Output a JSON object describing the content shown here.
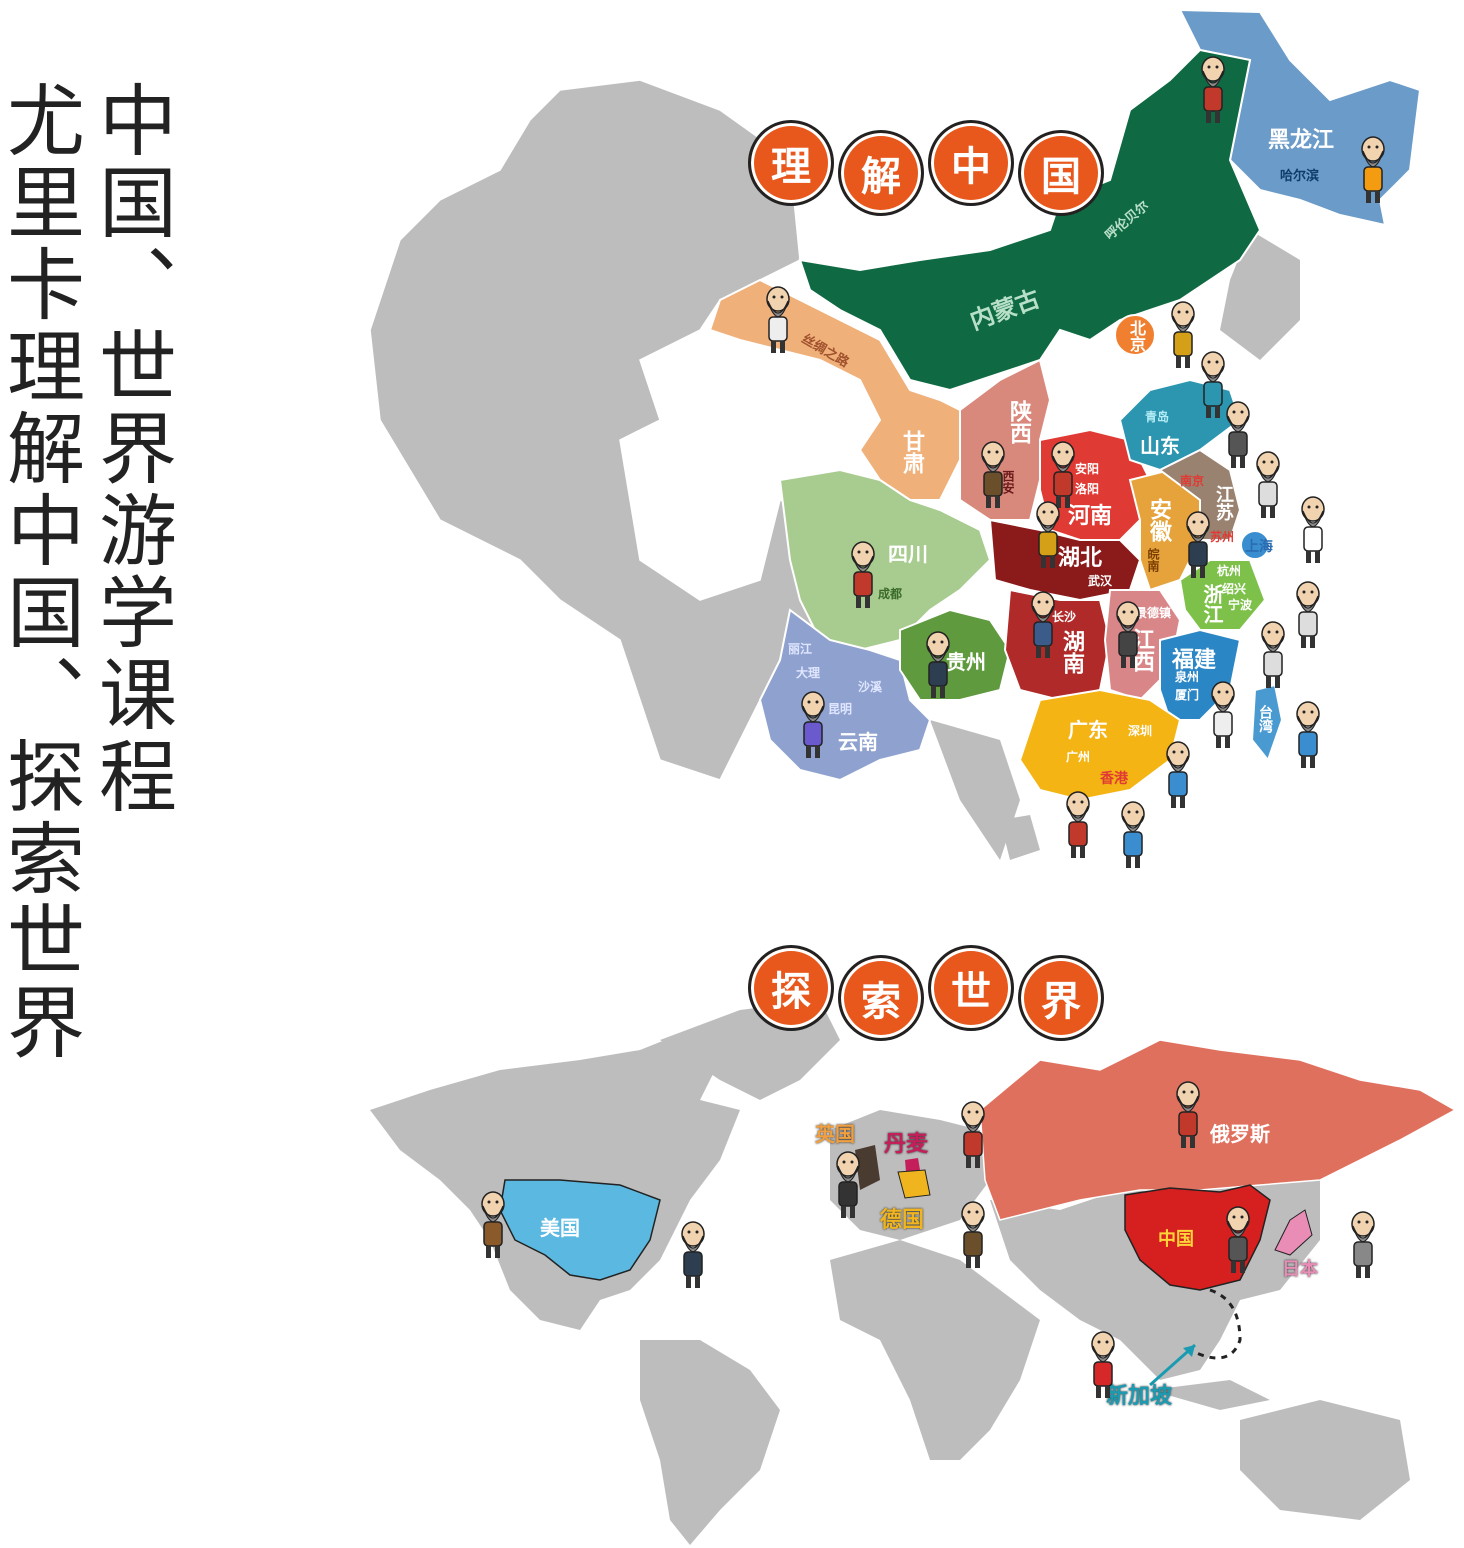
{
  "title": {
    "line1": "中国、世界游学课程",
    "line2": "尤里卡理解中国、探索世界"
  },
  "china_section": {
    "badges": [
      "理",
      "解",
      "中",
      "国"
    ],
    "badge_color": "#e8581c",
    "regions": [
      {
        "name": "黑龙江",
        "color": "#6b9bc8"
      },
      {
        "name": "内蒙古",
        "color": "#0f6a43"
      },
      {
        "name": "甘肃",
        "color": "#f0b07a"
      },
      {
        "name": "陕西",
        "color": "#d9897c"
      },
      {
        "name": "四川",
        "color": "#a8cb8f"
      },
      {
        "name": "云南",
        "color": "#8fa2cf"
      },
      {
        "name": "贵州",
        "color": "#5f9a3e"
      },
      {
        "name": "河南",
        "color": "#e03a34"
      },
      {
        "name": "湖北",
        "color": "#8b1a1a"
      },
      {
        "name": "湖南",
        "color": "#b02a2a"
      },
      {
        "name": "江西",
        "color": "#d98688"
      },
      {
        "name": "安徽",
        "color": "#e6a33b"
      },
      {
        "name": "山东",
        "color": "#2c96b0"
      },
      {
        "name": "江苏",
        "color": "#9a8270"
      },
      {
        "name": "浙江",
        "color": "#7ec14a"
      },
      {
        "name": "福建",
        "color": "#2b86c6"
      },
      {
        "name": "广东",
        "color": "#f3b414"
      },
      {
        "name": "北京",
        "color": "#f08030"
      },
      {
        "name": "上海",
        "color": "#3a8ed0"
      },
      {
        "name": "台湾",
        "color": "#4a9ad2"
      },
      {
        "name": "香港",
        "color": "#e03a34"
      }
    ],
    "labels": [
      {
        "text": "黑龙江",
        "key": "heilongjiang"
      },
      {
        "text": "哈尔滨",
        "key": "harbin"
      },
      {
        "text": "呼伦贝尔",
        "key": "hulunbuir"
      },
      {
        "text": "内蒙古",
        "key": "neimenggu"
      },
      {
        "text": "丝绸之路",
        "key": "silkroad"
      },
      {
        "text": "甘肃",
        "key": "gansu"
      },
      {
        "text": "陕西",
        "key": "shaanxi"
      },
      {
        "text": "西安",
        "key": "xian"
      },
      {
        "text": "北京",
        "key": "beijing"
      },
      {
        "text": "青岛",
        "key": "qingdao"
      },
      {
        "text": "山东",
        "key": "shandong"
      },
      {
        "text": "安阳",
        "key": "anyang"
      },
      {
        "text": "洛阳",
        "key": "luoyang"
      },
      {
        "text": "河南",
        "key": "henan"
      },
      {
        "text": "南京",
        "key": "nanjing"
      },
      {
        "text": "江苏",
        "key": "jiangsu"
      },
      {
        "text": "苏州",
        "key": "suzhou"
      },
      {
        "text": "上海",
        "key": "shanghai"
      },
      {
        "text": "安徽",
        "key": "anhui"
      },
      {
        "text": "皖南",
        "key": "wannan"
      },
      {
        "text": "杭州",
        "key": "hangzhou"
      },
      {
        "text": "绍兴",
        "key": "shaoxing"
      },
      {
        "text": "宁波",
        "key": "ningbo"
      },
      {
        "text": "浙江",
        "key": "zhejiang"
      },
      {
        "text": "四川",
        "key": "sichuan"
      },
      {
        "text": "成都",
        "key": "chengdu"
      },
      {
        "text": "湖北",
        "key": "hubei"
      },
      {
        "text": "武汉",
        "key": "wuhan"
      },
      {
        "text": "景德镇",
        "key": "jingdezhen"
      },
      {
        "text": "长沙",
        "key": "changsha"
      },
      {
        "text": "湖南",
        "key": "hunan"
      },
      {
        "text": "江西",
        "key": "jiangxi"
      },
      {
        "text": "福建",
        "key": "fujian"
      },
      {
        "text": "泉州",
        "key": "quanzhou"
      },
      {
        "text": "厦门",
        "key": "xiamen"
      },
      {
        "text": "台湾",
        "key": "taiwan"
      },
      {
        "text": "丽江",
        "key": "lijiang"
      },
      {
        "text": "大理",
        "key": "dali"
      },
      {
        "text": "沙溪",
        "key": "shaxi"
      },
      {
        "text": "昆明",
        "key": "kunming"
      },
      {
        "text": "云南",
        "key": "yunnan"
      },
      {
        "text": "贵州",
        "key": "guizhou"
      },
      {
        "text": "广东",
        "key": "guangdong"
      },
      {
        "text": "深圳",
        "key": "shenzhen"
      },
      {
        "text": "广州",
        "key": "guangzhou"
      },
      {
        "text": "香港",
        "key": "hongkong"
      }
    ]
  },
  "world_section": {
    "badges": [
      "探",
      "索",
      "世",
      "界"
    ],
    "labels": [
      {
        "text": "美国",
        "key": "usa"
      },
      {
        "text": "英国",
        "key": "uk"
      },
      {
        "text": "丹麦",
        "key": "denmark"
      },
      {
        "text": "德国",
        "key": "germany"
      },
      {
        "text": "俄罗斯",
        "key": "russia"
      },
      {
        "text": "中国",
        "key": "china"
      },
      {
        "text": "日本",
        "key": "japan"
      },
      {
        "text": "新加坡",
        "key": "singapore"
      }
    ],
    "colors": {
      "usa": "#5bb8e0",
      "russia": "#e0705e",
      "china": "#d61f1f",
      "japan": "#e98cb6",
      "uk": "#4a3b30",
      "germany": "#f0b51e",
      "denmark": "#c41f5a",
      "land": "#bdbdbd"
    }
  }
}
